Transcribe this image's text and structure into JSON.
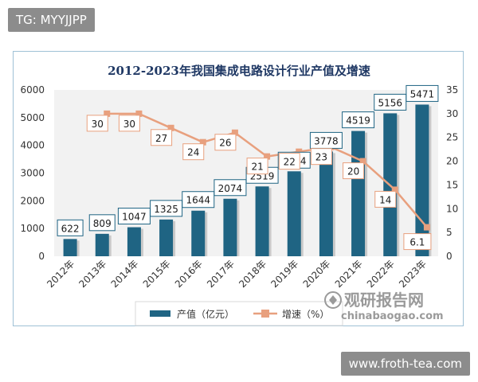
{
  "watermark_top": "TG: MYYJJPP",
  "watermark_bottom": "www.froth-tea.com",
  "brand": {
    "name": "观研报告网",
    "url": "chinabaogao.com"
  },
  "colors": {
    "bar": "#1f6483",
    "line": "#e8a07e",
    "title": "#1f3864",
    "plot_bg": "#f2f2f2"
  },
  "chart_data": {
    "type": "bar",
    "title": "2012-2023年我国集成电路设计行业产值及增速",
    "categories": [
      "2012年",
      "2013年",
      "2014年",
      "2015年",
      "2016年",
      "2017年",
      "2018年",
      "2019年",
      "2020年",
      "2021年",
      "2022年",
      "2023年"
    ],
    "series": [
      {
        "name": "产值（亿元）",
        "type": "bar",
        "axis": "left",
        "values": [
          622,
          809,
          1047,
          1325,
          1644,
          2074,
          2519,
          3064,
          3778,
          4519,
          5156,
          5471
        ]
      },
      {
        "name": "增速（%）",
        "type": "line",
        "axis": "right",
        "values": [
          null,
          30,
          30,
          27,
          24,
          26,
          21,
          22,
          23,
          20,
          14,
          6.1
        ],
        "labels": [
          "",
          "30",
          "30",
          "27",
          "24",
          "26",
          "21",
          "22",
          "23",
          "20",
          "14",
          "6.1"
        ]
      }
    ],
    "y_left": {
      "min": 0,
      "max": 6000,
      "ticks": [
        "0",
        "1000",
        "2000",
        "3000",
        "4000",
        "5000",
        "6000"
      ]
    },
    "y_right": {
      "min": 0,
      "max": 35,
      "ticks": [
        "0",
        "5",
        "10",
        "15",
        "20",
        "25",
        "30",
        "35"
      ]
    },
    "grid": false,
    "legend_position": "bottom"
  }
}
